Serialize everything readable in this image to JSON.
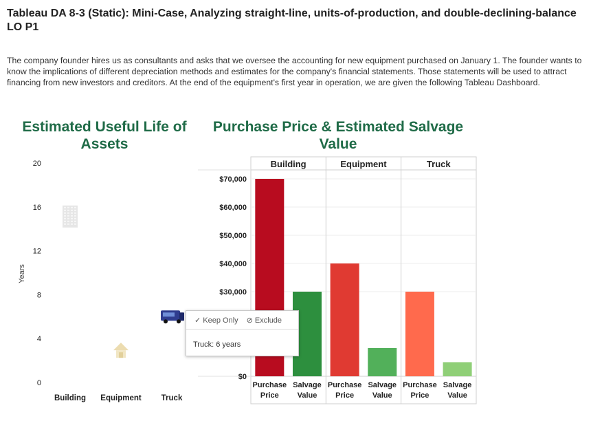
{
  "title": "Tableau DA 8-3 (Static): Mini-Case, Analyzing straight-line, units-of-production, and double-declining-balance LO P1",
  "intro": "The company founder hires us as consultants and asks that we oversee the accounting for new equipment purchased on January 1. The founder wants to know the implications of different depreciation methods and estimates for the company's financial statements. Those statements will be used to attract financing from new investors and creditors. At the end of the equipment's first year in operation, we are given the following Tableau Dashboard.",
  "tooltip": {
    "keep_only": "✓ Keep Only",
    "exclude": "⊘ Exclude",
    "text": "Truck: 6 years"
  },
  "chart_data": [
    {
      "type": "scatter",
      "title": "Estimated Useful Life of Assets",
      "ylabel": "Years",
      "xlabel": "",
      "ylim": [
        0,
        20
      ],
      "yticks": [
        0,
        4,
        8,
        12,
        16,
        20
      ],
      "categories": [
        "Building",
        "Equipment",
        "Truck"
      ],
      "values": [
        15,
        3,
        6
      ],
      "markers": [
        "building-icon",
        "house-icon",
        "truck-icon"
      ],
      "grid": false
    },
    {
      "type": "bar",
      "title": "Purchase Price & Estimated Salvage Value",
      "groups": [
        "Building",
        "Equipment",
        "Truck"
      ],
      "subcategories": [
        "Purchase Price",
        "Salvage Value"
      ],
      "subcategory_labels": [
        [
          "Purchase",
          "Price"
        ],
        [
          "Salvage",
          "Value"
        ]
      ],
      "ylim": [
        0,
        70000
      ],
      "yticks": [
        "$0",
        "$30,000",
        "$40,000",
        "$50,000",
        "$60,000",
        "$70,000"
      ],
      "ytick_values": [
        0,
        30000,
        40000,
        50000,
        60000,
        70000
      ],
      "values": [
        [
          70000,
          30000
        ],
        [
          40000,
          10000
        ],
        [
          30000,
          5000
        ]
      ],
      "colors": [
        [
          "#b80c1f",
          "#2d8f3e"
        ],
        [
          "#e03a32",
          "#52b05a"
        ],
        [
          "#ff6a4d",
          "#8fcf77"
        ]
      ],
      "grid": true
    }
  ]
}
